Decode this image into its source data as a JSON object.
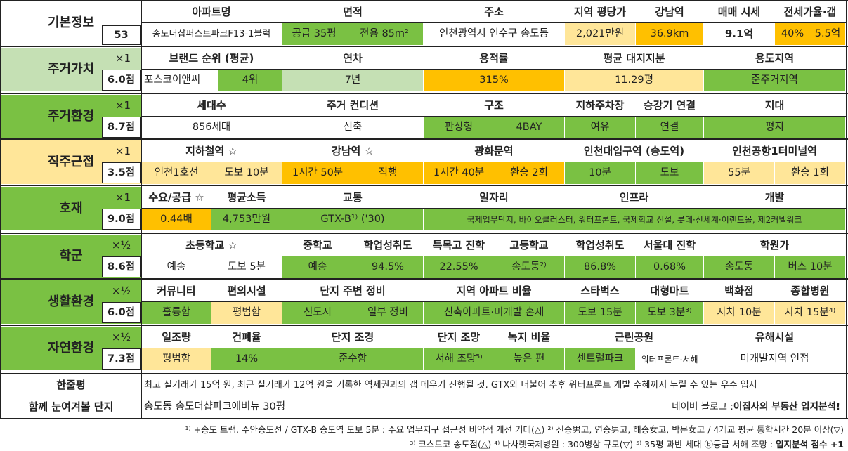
{
  "basic": {
    "label": "기본정보",
    "id": "53",
    "headers": [
      "아파트명",
      "면적",
      "주소",
      "지역 평당가",
      "강남역",
      "매매 시세",
      "전세가율·갭"
    ],
    "name": "송도더샵퍼스트파크F13-1블럭",
    "area_supply": "공급 35평",
    "area_private": "전용 85m²",
    "address": "인천광역시 연수구 송도동",
    "price_per_pyeong": "2,021만원",
    "gangnam_distance": "36.9km",
    "sale_price": "9.1억",
    "jeonse_ratio": "40%",
    "gap": "5.5억"
  },
  "sections": [
    {
      "name": "주거가치",
      "mult": "×1",
      "score": "6.0점",
      "headers": [
        "브랜드 순위 (평균)",
        "연차",
        "용적률",
        "평균 대지지분",
        "용도지역"
      ],
      "values": [
        "포스코이앤씨",
        "4위",
        "7년",
        "315%",
        "11.29평",
        "준주거지역"
      ]
    },
    {
      "name": "주거환경",
      "mult": "×1",
      "score": "8.7점",
      "headers": [
        "세대수",
        "주거 컨디션",
        "구조",
        "지하주차장",
        "승강기 연결",
        "지대"
      ],
      "values": [
        "856세대",
        "신축",
        "판상형",
        "4BAY",
        "여유",
        "연결",
        "평지"
      ]
    },
    {
      "name": "직주근접",
      "mult": "×1",
      "score": "3.5점",
      "headers": [
        "지하철역 ☆",
        "강남역 ☆",
        "광화문역",
        "인천대입구역 (송도역)",
        "인천공항1터미널역"
      ],
      "values": [
        "인천1호선",
        "도보 10분",
        "1시간 50분",
        "직행",
        "1시간 40분",
        "환승 2회",
        "10분",
        "도보",
        "55분",
        "환승 1회"
      ]
    },
    {
      "name": "호재",
      "mult": "×1",
      "score": "9.0점",
      "headers": [
        "수요/공급 ☆",
        "평균소득",
        "교통",
        "일자리",
        "인프라",
        "개발"
      ],
      "values": [
        "0.44배",
        "4,753만원",
        "GTX-B¹⁾ ('30)",
        "국제업무단지, 바이오클러스터, 워터프론트, 국제학교 신설, 롯데·신세계·이랜드몰, 제2커넬워크"
      ]
    },
    {
      "name": "학군",
      "mult": "×½",
      "score": "8.6점",
      "headers": [
        "초등학교 ☆",
        "중학교",
        "학업성취도",
        "특목고 진학",
        "고등학교",
        "학업성취도",
        "서울대 진학",
        "학원가"
      ],
      "values": [
        "예송",
        "도보 5분",
        "예송",
        "94.5%",
        "22.55%",
        "송도동²⁾",
        "86.8%",
        "0.68%",
        "송도동",
        "버스 10분"
      ]
    },
    {
      "name": "생활환경",
      "mult": "×½",
      "score": "6.0점",
      "headers": [
        "커뮤니티",
        "편의시설",
        "단지 주변 정비",
        "지역 아파트 비율",
        "스타벅스",
        "대형마트",
        "백화점",
        "종합병원"
      ],
      "values": [
        "훌륭함",
        "평범함",
        "신도시",
        "일부 정비",
        "신축아파트·미개발 혼재",
        "도보 15분",
        "도보 3분³⁾",
        "자차 10분",
        "자차 15분⁴⁾"
      ]
    },
    {
      "name": "자연환경",
      "mult": "×½",
      "score": "7.3점",
      "headers": [
        "일조량",
        "건폐율",
        "단지 조경",
        "단지 조망",
        "녹지 비율",
        "근린공원",
        "유해시설"
      ],
      "values": [
        "평범함",
        "14%",
        "준수함",
        "서해 조망⁵⁾",
        "높은 편",
        "센트럴파크",
        "워터프론트·서해",
        "미개발지역 인접"
      ]
    }
  ],
  "summary": {
    "label": "한줄평",
    "text": "최고 실거래가 15억 원, 최근 실거래가 12억 원을 기록한 역세권과의 갭 메우기 진행될 것. GTX와 더불어 추후 워터프론트 개발 수혜까지 누릴 수 있는 우수 입지"
  },
  "compare": {
    "label": "함께 눈여겨볼 단지",
    "text": "송도동 송도더샵파크애비뉴 30평",
    "blog_prefix": "네이버 블로그 : ",
    "blog_name": "이집사의 부동산 입지분석!"
  },
  "footnotes": {
    "line1": "¹⁾ +송도 트램, 주안송도선 / GTX-B 송도역 도보 5분 : 주요 업무지구 접근성 비약적 개선 기대(△) ²⁾ 신송男고, 연송男고, 해송女고, 박문女고 / 4개교 평균 통학시간 20분 이상(▽)",
    "line2": "³⁾ 코스트코 송도점(△) ⁴⁾ 나사렛국제병원 : 300병상 규모(▽) ⁵⁾ 35평 과반 세대 ⓑ등급 서해 조망 : ",
    "line2_bold": "입지분석 점수 +1"
  },
  "colors": {
    "green_dark": "#7ac143",
    "green_light": "#c5e0b4",
    "green_cat": "#92d050",
    "yellow_light": "#ffe699",
    "yellow_cat": "#ffe699",
    "orange": "#ffc000"
  }
}
